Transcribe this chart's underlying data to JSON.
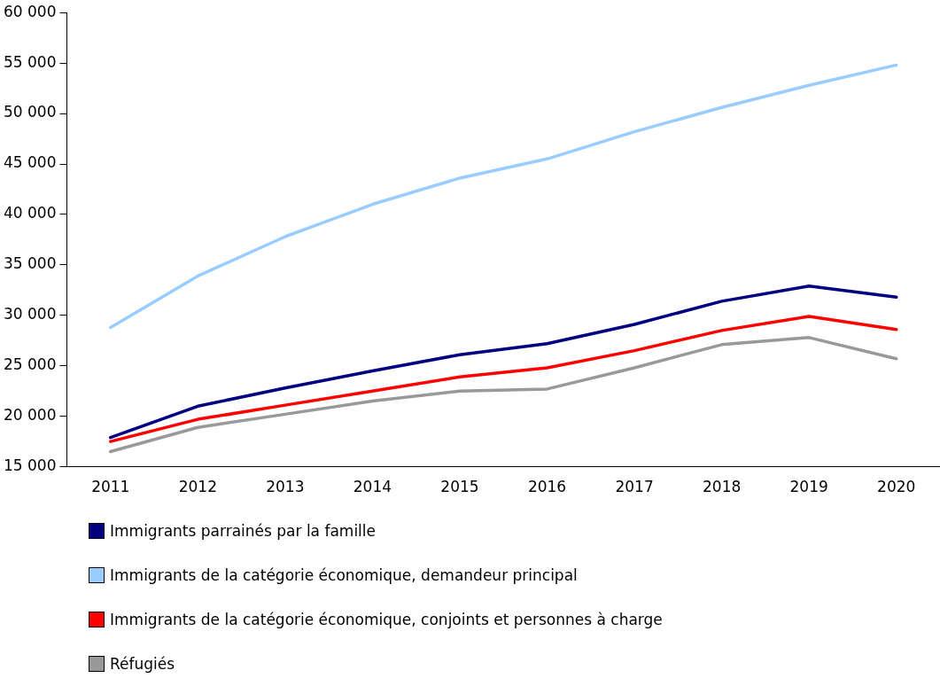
{
  "chart_data": {
    "type": "line",
    "categories": [
      "2011",
      "2012",
      "2013",
      "2014",
      "2015",
      "2016",
      "2017",
      "2018",
      "2019",
      "2020"
    ],
    "series": [
      {
        "name": "Immigrants parrainés par la famille",
        "color": "#000080",
        "values": [
          17900,
          21000,
          22800,
          24500,
          26100,
          27200,
          29100,
          31400,
          32900,
          31800
        ]
      },
      {
        "name": "Immigrants de la catégorie économique, demandeur principal",
        "color": "#99ccff",
        "values": [
          28800,
          33900,
          37800,
          41000,
          43600,
          45500,
          48200,
          50600,
          52800,
          54800
        ]
      },
      {
        "name": "Immigrants de la catégorie économique, conjoints et personnes à charge",
        "color": "#ff0000",
        "values": [
          17500,
          19700,
          21100,
          22500,
          23900,
          24800,
          26500,
          28500,
          29900,
          28600
        ]
      },
      {
        "name": "Réfugiés",
        "color": "#999999",
        "values": [
          16500,
          18900,
          20200,
          21500,
          22500,
          22700,
          24800,
          27100,
          27800,
          25700
        ]
      }
    ],
    "ylim": [
      15000,
      60000
    ],
    "yticks": [
      {
        "value": 15000,
        "label": "15 000"
      },
      {
        "value": 20000,
        "label": "20 000"
      },
      {
        "value": 25000,
        "label": "25 000"
      },
      {
        "value": 30000,
        "label": "30 000"
      },
      {
        "value": 35000,
        "label": "35 000"
      },
      {
        "value": 40000,
        "label": "40 000"
      },
      {
        "value": 45000,
        "label": "45 000"
      },
      {
        "value": 50000,
        "label": "50 000"
      },
      {
        "value": 55000,
        "label": "55 000"
      },
      {
        "value": 60000,
        "label": "60 000"
      }
    ],
    "grid": false,
    "legend": "bottom",
    "marker": "none",
    "line_style": "solid"
  }
}
